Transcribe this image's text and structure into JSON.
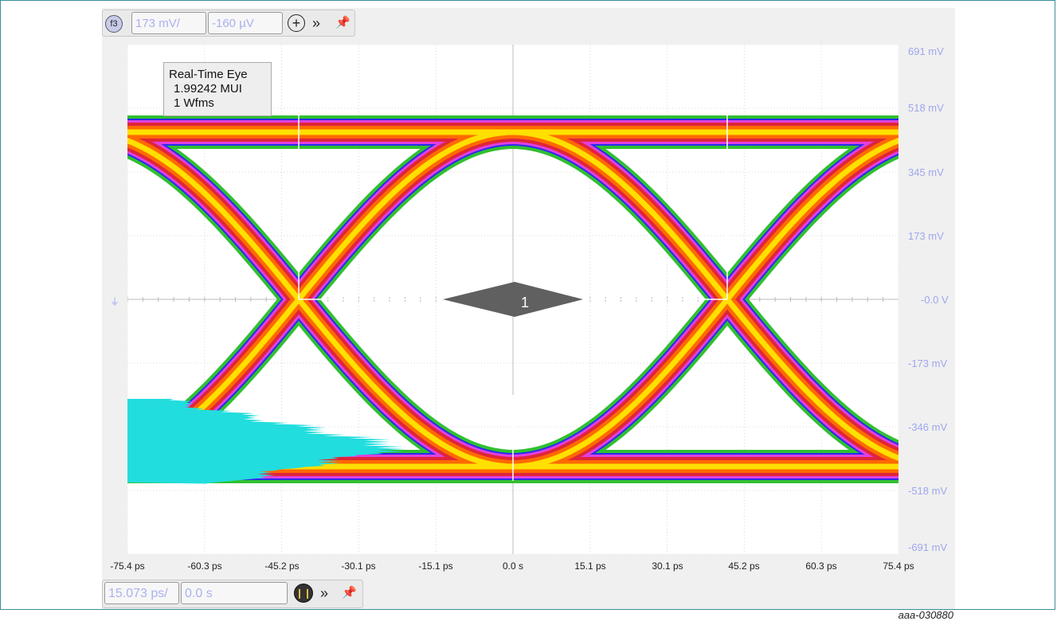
{
  "figure_id": "aaa-030880",
  "top_toolbar": {
    "channel_badge": "f3",
    "vertical_scale": "173 mV/",
    "vertical_offset": "-160 µV",
    "add_icon": "plus-circle-icon",
    "expand_icon": "double-chevron-right-icon",
    "pin_icon": "pin-icon"
  },
  "bottom_toolbar": {
    "horizontal_scale": "15.073 ps/",
    "horizontal_position": "0.0 s",
    "run_icon": "run-stop-icon",
    "expand_icon": "double-chevron-right-icon",
    "pin_icon": "pin-icon"
  },
  "legend": {
    "title": "Real-Time Eye",
    "mui": "1.99242 MUI",
    "wfms": "1 Wfms"
  },
  "voltage_labels": [
    "691 mV",
    "518 mV",
    "345 mV",
    "173 mV",
    "-0.0 V",
    "-173 mV",
    "-346 mV",
    "-518 mV",
    "-691 mV"
  ],
  "time_labels": [
    "-75.4 ps",
    "-60.3 ps",
    "-45.2 ps",
    "-30.1 ps",
    "-15.1 ps",
    "0.0 s",
    "15.1 ps",
    "30.1 ps",
    "45.2 ps",
    "60.3 ps",
    "75.4 ps"
  ],
  "marker_label": "1",
  "ground_marker": "ground-icon",
  "colors": {
    "eye_core": "#ffe000",
    "eye_mid": "#ff6a00",
    "eye_outer": "#e0243a",
    "eye_magenta": "#e040e0",
    "eye_blue": "#2a2af0",
    "eye_green": "#30c030",
    "histogram": "#22dddd",
    "axis_label": "#9fa6ee",
    "mask": "#606060"
  }
}
